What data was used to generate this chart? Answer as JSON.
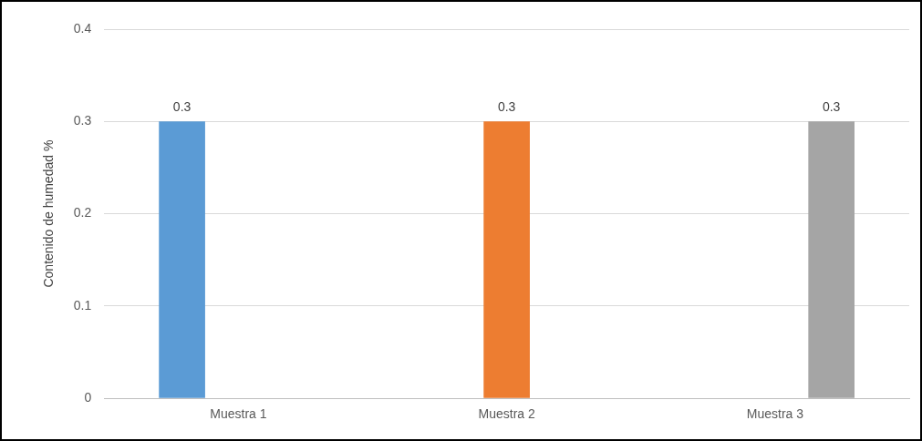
{
  "chart_data": {
    "type": "bar",
    "ylabel": "Contenido de humedad %",
    "categories": [
      "Muestra 1",
      "Muestra 2",
      "Muestra 3"
    ],
    "series": [
      {
        "color": "#5b9bd5",
        "values": [
          0.3,
          null,
          null
        ]
      },
      {
        "color": "#ed7d31",
        "values": [
          null,
          0.3,
          null
        ]
      },
      {
        "color": "#a5a5a5",
        "values": [
          null,
          null,
          0.3
        ]
      }
    ],
    "ylim": [
      0,
      0.4
    ],
    "yticks": [
      0,
      0.1,
      0.2,
      0.3,
      0.4
    ],
    "grid": "y",
    "data_labels": true,
    "legend": false
  }
}
